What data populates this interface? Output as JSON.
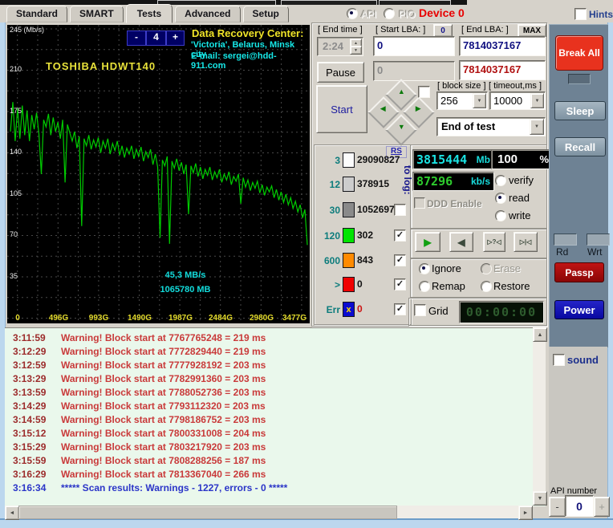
{
  "window": {
    "tabs": [
      {
        "label": "Standard"
      },
      {
        "label": "SMART"
      },
      {
        "label": "Tests"
      },
      {
        "label": "Advanced"
      },
      {
        "label": "Setup"
      }
    ],
    "active_tab": "Tests",
    "api_label": "API",
    "pio_label": "PIO",
    "device_label": "Device 0",
    "hints_label": "Hints"
  },
  "graph": {
    "y_unit": "(Mb/s)",
    "y_tick_values": [
      245,
      210,
      175,
      140,
      105,
      70,
      35
    ],
    "x_tick_labels": [
      "0",
      "496G",
      "993G",
      "1490G",
      "1987G",
      "2484G",
      "2980G",
      "3477G"
    ],
    "zoom_minus": "-",
    "zoom_value": "4",
    "zoom_plus": "+",
    "banner_title": "Data Recovery Center:",
    "banner_line2": "'Victoria', Belarus, Minsk city",
    "banner_line3": "E-mail: sergei@hdd-911.com",
    "drive_model": "TOSHIBA HDWT140",
    "overlay_speed": "45,3 MB/s",
    "overlay_position": "1065780 MB",
    "y_max": 245,
    "series_values": [
      158,
      183,
      150,
      178,
      152,
      180,
      155,
      176,
      150,
      172,
      160,
      174,
      156,
      122,
      168,
      162,
      173,
      155,
      170,
      158,
      166,
      152,
      168,
      115,
      164,
      157,
      150,
      158,
      144,
      154,
      78,
      152,
      146,
      155,
      143,
      151,
      145,
      153,
      140,
      150,
      144,
      152,
      139,
      148,
      142,
      150,
      138,
      146,
      136,
      144,
      139,
      146,
      135,
      143,
      137,
      145,
      133,
      141,
      136,
      143,
      130,
      139,
      128,
      68,
      134,
      129,
      137,
      63,
      133,
      127,
      135,
      125,
      132,
      122,
      130,
      88,
      129,
      123,
      131,
      120,
      128,
      118,
      126,
      121,
      128,
      117,
      124,
      119,
      126,
      115,
      122,
      117,
      124,
      113,
      120,
      116,
      122,
      97,
      119,
      111,
      117,
      108,
      115,
      110,
      116,
      106,
      113,
      104,
      111,
      107,
      112,
      102,
      109,
      100,
      107,
      98,
      105,
      96,
      102,
      93,
      99,
      90,
      96,
      85,
      92,
      62
    ]
  },
  "controls": {
    "end_time_label": "[ End time ]",
    "end_time_value": "2:24",
    "start_lba_label": "[ Start LBA: ]",
    "start_lba_button": "0",
    "start_lba_value": "0",
    "start_lba_value2": "0",
    "end_lba_label": "[ End LBA: ]",
    "end_lba_button": "MAX",
    "end_lba_value": "7814037167",
    "end_lba_value2": "7814037167",
    "pause_label": "Pause",
    "start_label": "Start",
    "block_size_label": "[ block size ]",
    "block_size_value": "256",
    "timeout_label": "[ timeout,ms ]",
    "timeout_value": "10000",
    "action_select_value": "End of test"
  },
  "legend": {
    "rs_label": "RS",
    "to_log_label": "to log:",
    "rows": [
      {
        "bucket": "3",
        "count": "29090827",
        "box_color": "#fcfcfc",
        "checked": null
      },
      {
        "bucket": "12",
        "count": "378915",
        "box_color": "#cdcdcd",
        "checked": null
      },
      {
        "bucket": "30",
        "count": "1052697",
        "box_color": "#8a8a8a",
        "checked": false
      },
      {
        "bucket": "120",
        "count": "302",
        "box_color": "#00e400",
        "checked": true
      },
      {
        "bucket": "600",
        "count": "843",
        "box_color": "#ff8a00",
        "checked": true
      },
      {
        "bucket": ">",
        "count": "0",
        "box_color": "#f00000",
        "checked": true
      },
      {
        "bucket": "Err",
        "count": "0",
        "box_color": "#0b0bd0",
        "checked": true,
        "box_glyph": "x",
        "count_color": "#cc1111"
      }
    ]
  },
  "status": {
    "capacity_value": "3815444",
    "capacity_unit": "Mb",
    "percent_value": "100",
    "percent_unit": "%",
    "speed_value": "87296",
    "speed_unit": "kb/s",
    "ddd_label": "DDD Enable",
    "mode_options": [
      "verify",
      "read",
      "write"
    ],
    "mode_selected": "read",
    "action_options": [
      "Ignore",
      "Erase",
      "Remap",
      "Restore"
    ],
    "action_selected": "Ignore",
    "action_disabled": [
      "Erase"
    ],
    "grid_label": "Grid",
    "timer_value": "00:00:00"
  },
  "playback": {
    "buttons": [
      {
        "name": "play-button",
        "glyph_key": "play"
      },
      {
        "name": "rewind-button",
        "glyph_key": "rewind"
      },
      {
        "name": "seek-question-button",
        "glyph_key": "seek_question"
      },
      {
        "name": "seek-step-button",
        "glyph_key": "seek_step"
      }
    ]
  },
  "side": {
    "break_all": "Break All",
    "sleep": "Sleep",
    "recall": "Recall",
    "rd": "Rd",
    "wrt": "Wrt",
    "passp": "Passp",
    "power": "Power",
    "sound": "sound",
    "api_number_label": "API number",
    "api_number_value": "0",
    "minus": "-",
    "plus": "+"
  },
  "log": {
    "rows": [
      {
        "time": "3:11:59",
        "message": "Warning! Block start at 7767765248 = 219 ms",
        "type": "warning"
      },
      {
        "time": "3:12:29",
        "message": "Warning! Block start at 7772829440 = 219 ms",
        "type": "warning"
      },
      {
        "time": "3:12:59",
        "message": "Warning! Block start at 7777928192 = 203 ms",
        "type": "warning"
      },
      {
        "time": "3:13:29",
        "message": "Warning! Block start at 7782991360 = 203 ms",
        "type": "warning"
      },
      {
        "time": "3:13:59",
        "message": "Warning! Block start at 7788052736 = 203 ms",
        "type": "warning"
      },
      {
        "time": "3:14:29",
        "message": "Warning! Block start at 7793112320 = 203 ms",
        "type": "warning"
      },
      {
        "time": "3:14:59",
        "message": "Warning! Block start at 7798186752 = 203 ms",
        "type": "warning"
      },
      {
        "time": "3:15:12",
        "message": "Warning! Block start at 7800331008 = 204 ms",
        "type": "warning"
      },
      {
        "time": "3:15:29",
        "message": "Warning! Block start at 7803217920 = 203 ms",
        "type": "warning"
      },
      {
        "time": "3:15:59",
        "message": "Warning! Block start at 7808288256 = 187 ms",
        "type": "warning"
      },
      {
        "time": "3:16:29",
        "message": "Warning! Block start at 7813367040 = 266 ms",
        "type": "warning"
      },
      {
        "time": "3:16:34",
        "message": "***** Scan results: Warnings - 1227, errors - 0 *****",
        "type": "result"
      }
    ]
  },
  "icons": {
    "spin_up": "▲",
    "spin_down": "▼",
    "dropdown_arrow": "▼",
    "scroll_left": "◄",
    "scroll_right": "►",
    "scroll_up": "▲",
    "scroll_down": "▼",
    "play": "▶",
    "rewind": "◀",
    "seek_question": "▷?◁",
    "seek_step": "▷|◁",
    "diamond_up": "▲",
    "diamond_down": "▼",
    "diamond_left": "◀",
    "diamond_right": "▶",
    "check": "✓"
  },
  "colors": {
    "graph_line": "#00cc00",
    "banner_yellow": "#f0e428",
    "banner_cyan": "#16e8e8",
    "device_red": "#e80000",
    "lcd_cyan": "#1ae2e2",
    "lcd_green": "#2ecc2e",
    "warning_red": "#c93a3a",
    "result_blue": "#2b35c8",
    "break_all_red": "#e8321e",
    "passp_red": "#9b0b0b",
    "power_blue": "#0d0dae"
  }
}
